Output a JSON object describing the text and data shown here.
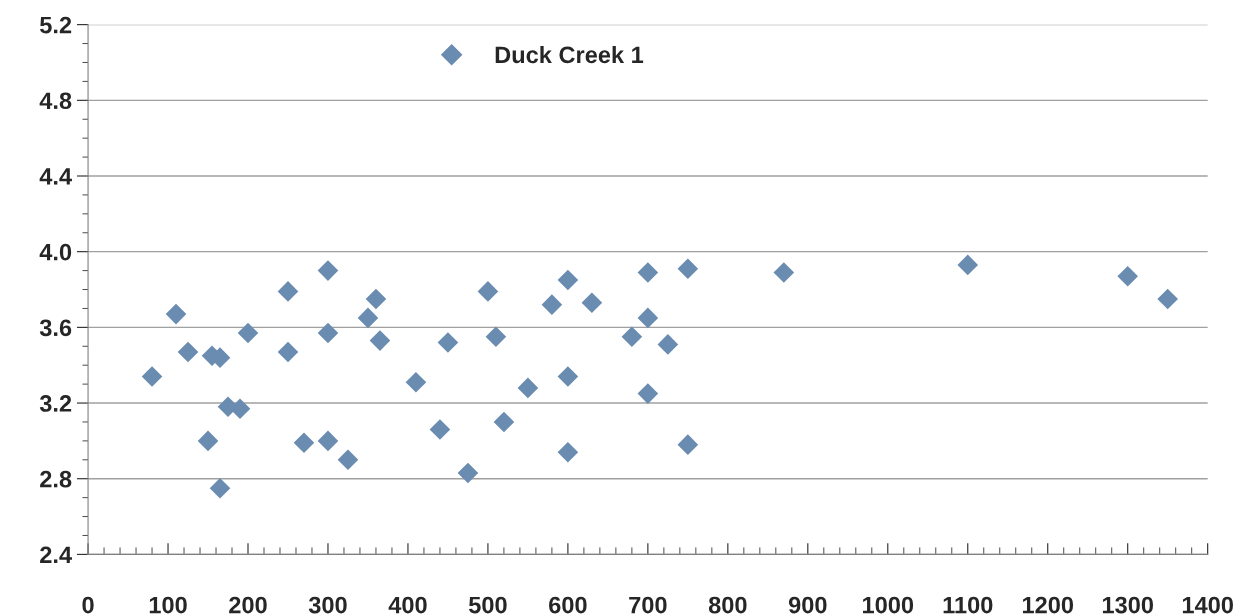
{
  "chart_data": {
    "type": "scatter",
    "x": [
      80,
      110,
      125,
      155,
      165,
      150,
      175,
      190,
      165,
      200,
      250,
      250,
      270,
      300,
      300,
      300,
      325,
      350,
      360,
      365,
      410,
      440,
      450,
      475,
      500,
      510,
      520,
      550,
      580,
      600,
      600,
      600,
      630,
      680,
      700,
      700,
      700,
      725,
      750,
      750,
      870,
      1100,
      1300,
      1350
    ],
    "series": [
      {
        "name": "Duck Creek 1",
        "color": "#6a8cb0",
        "values": [
          3.34,
          3.67,
          3.47,
          3.45,
          3.44,
          3.0,
          3.18,
          3.17,
          2.75,
          3.57,
          3.79,
          3.47,
          2.99,
          3.9,
          3.57,
          3.0,
          2.9,
          3.65,
          3.75,
          3.53,
          3.31,
          3.06,
          3.52,
          2.83,
          3.79,
          3.55,
          3.1,
          3.28,
          3.72,
          3.85,
          3.34,
          2.94,
          3.73,
          3.55,
          3.89,
          3.65,
          3.25,
          3.51,
          3.91,
          2.98,
          3.89,
          3.93,
          3.87,
          3.75
        ]
      }
    ],
    "xlim": [
      0,
      1400
    ],
    "xticks": [
      0,
      100,
      200,
      300,
      400,
      500,
      600,
      700,
      800,
      900,
      1000,
      1100,
      1200,
      1300,
      1400
    ],
    "ylim": [
      2.4,
      5.2
    ],
    "yticks": [
      {
        "value": 2.4,
        "label": "2.4"
      },
      {
        "value": 2.8,
        "label": "2.8"
      },
      {
        "value": 3.2,
        "label": "3.2"
      },
      {
        "value": 3.6,
        "label": "3.6"
      },
      {
        "value": 4.0,
        "label": "4.0"
      },
      {
        "value": 4.4,
        "label": "4.4"
      },
      {
        "value": 4.8,
        "label": "4.8"
      },
      {
        "value": 5.2,
        "label": "5.2"
      }
    ],
    "grid": "y",
    "legend": "top",
    "marker": "diamond"
  }
}
